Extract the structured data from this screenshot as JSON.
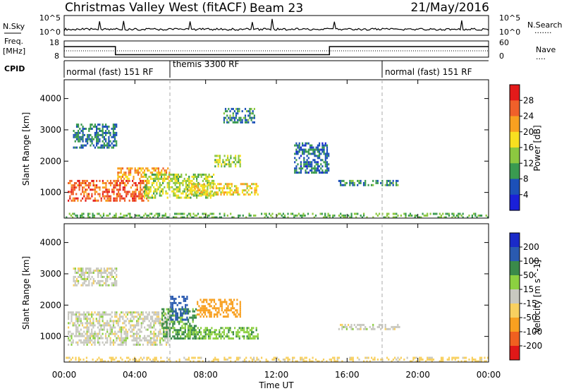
{
  "header": {
    "title": "Christmas Valley West (fitACF)",
    "beam": "Beam 23",
    "date": "21/May/2016"
  },
  "nsky_panel": {
    "left_label": "N.Sky",
    "left_ticks": [
      "10^5",
      "10^0"
    ],
    "right_ticks": [
      "10^5",
      "10^0"
    ],
    "right_label": "N.Search",
    "right_marker": "......."
  },
  "freq_panel": {
    "left_label_line1": "Freq.",
    "left_label_line2": "[MHz]",
    "left_ticks": [
      "18",
      "8"
    ],
    "right_ticks": [
      "60",
      "0"
    ],
    "right_label": "Nave",
    "right_marker": "....",
    "freq_steps": [
      {
        "from": 0,
        "to": 2.9,
        "value": 14.5
      },
      {
        "from": 2.9,
        "to": 15.0,
        "value": 9.5
      },
      {
        "from": 15.0,
        "to": 24,
        "value": 14.5
      }
    ]
  },
  "cpid": {
    "label": "CPID",
    "segments": [
      {
        "label": "normal (fast) 151 RF",
        "start": 0
      },
      {
        "label": "themis 3300 RF",
        "start": 6.0
      },
      {
        "label": "normal (fast) 151 RF",
        "start": 18.0
      }
    ]
  },
  "chart_data": [
    {
      "type": "heatmap",
      "title": "Power",
      "ylabel": "Slant Range [km]",
      "xlabel": "",
      "colorbar_label": "Power [dB]",
      "colorbar_ticks": [
        "28",
        "24",
        "20",
        "16",
        "12",
        "8",
        "4"
      ],
      "colorbar_colors": [
        "#e41a1a",
        "#f0602a",
        "#f8a020",
        "#f8e020",
        "#8cc840",
        "#3a9a50",
        "#1c50b8",
        "#1a20d8"
      ],
      "ylim": [
        180,
        4600
      ],
      "yticks": [
        1000,
        2000,
        3000,
        4000
      ],
      "xlim": [
        0,
        24
      ],
      "series": [
        {
          "x_start": 0.2,
          "x_end": 4.8,
          "range_start": 700,
          "range_end": 1400,
          "value": 26
        },
        {
          "x_start": 3.0,
          "x_end": 6.0,
          "range_start": 1400,
          "range_end": 1800,
          "value": 22
        },
        {
          "x_start": 4.5,
          "x_end": 8.5,
          "range_start": 800,
          "range_end": 1600,
          "value": 15
        },
        {
          "x_start": 7.0,
          "x_end": 11.0,
          "range_start": 900,
          "range_end": 1300,
          "value": 18
        },
        {
          "x_start": 8.5,
          "x_end": 10.0,
          "range_start": 1800,
          "range_end": 2200,
          "value": 14
        },
        {
          "x_start": 0.5,
          "x_end": 3.0,
          "range_start": 2400,
          "range_end": 3200,
          "value": 8
        },
        {
          "x_start": 9.0,
          "x_end": 10.8,
          "range_start": 3200,
          "range_end": 3700,
          "value": 9
        },
        {
          "x_start": 13.0,
          "x_end": 15.0,
          "range_start": 1600,
          "range_end": 2600,
          "value": 7
        },
        {
          "x_start": 15.5,
          "x_end": 19.0,
          "range_start": 1200,
          "range_end": 1400,
          "value": 10
        },
        {
          "x_start": 0,
          "x_end": 24,
          "range_start": 180,
          "range_end": 350,
          "value": 12
        }
      ]
    },
    {
      "type": "heatmap",
      "title": "Velocity",
      "ylabel": "Slant Range [km]",
      "xlabel": "Time UT",
      "colorbar_label": "Velocity [m s^-1]",
      "colorbar_ticks": [
        "200",
        "100",
        "50",
        "15",
        "-15",
        "-50",
        "-100",
        "-200"
      ],
      "colorbar_colors": [
        "#1a2ac8",
        "#2a5ab0",
        "#3a8a4a",
        "#8cd040",
        "#c8c8c0",
        "#f8d060",
        "#f8a020",
        "#f06020",
        "#e01818"
      ],
      "ylim": [
        180,
        4600
      ],
      "yticks": [
        1000,
        2000,
        3000,
        4000
      ],
      "xlim": [
        0,
        24
      ],
      "xticks": [
        "00:00",
        "04:00",
        "08:00",
        "12:00",
        "16:00",
        "20:00",
        "00:00"
      ],
      "series": [
        {
          "x_start": 0.2,
          "x_end": 6.0,
          "range_start": 700,
          "range_end": 1800,
          "value": 0
        },
        {
          "x_start": 5.5,
          "x_end": 7.5,
          "range_start": 900,
          "range_end": 1900,
          "value": 60
        },
        {
          "x_start": 6.0,
          "x_end": 7.0,
          "range_start": 1500,
          "range_end": 2300,
          "value": 180
        },
        {
          "x_start": 7.5,
          "x_end": 10.0,
          "range_start": 1600,
          "range_end": 2200,
          "value": -80
        },
        {
          "x_start": 7.0,
          "x_end": 11.0,
          "range_start": 900,
          "range_end": 1300,
          "value": 40
        },
        {
          "x_start": 0.5,
          "x_end": 3.0,
          "range_start": 2600,
          "range_end": 3200,
          "value": 0
        },
        {
          "x_start": 15.5,
          "x_end": 19.0,
          "range_start": 1200,
          "range_end": 1400,
          "value": 0
        },
        {
          "x_start": 0,
          "x_end": 24,
          "range_start": 180,
          "range_end": 350,
          "value": -30
        }
      ]
    }
  ]
}
